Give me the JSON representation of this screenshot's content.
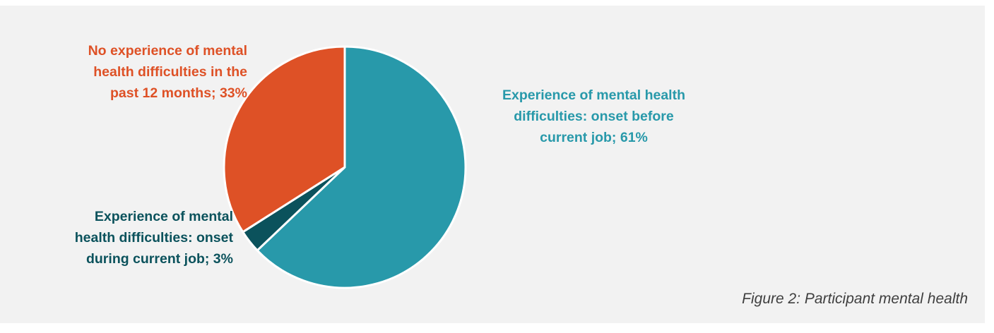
{
  "chart_data": {
    "type": "pie",
    "slices": [
      {
        "label": "Experience of mental health\ndifficulties: onset before\ncurrent job; 61%",
        "value": 61,
        "color": "#2899aa"
      },
      {
        "label": "Experience of mental\nhealth difficulties: onset\nduring current job; 3%",
        "value": 3,
        "color": "#0b525c"
      },
      {
        "label": "No experience of mental\nhealth difficulties in the\npast 12 months; 33%",
        "value": 33,
        "color": "#de5126"
      }
    ]
  },
  "caption": "Figure 2: Participant mental health"
}
